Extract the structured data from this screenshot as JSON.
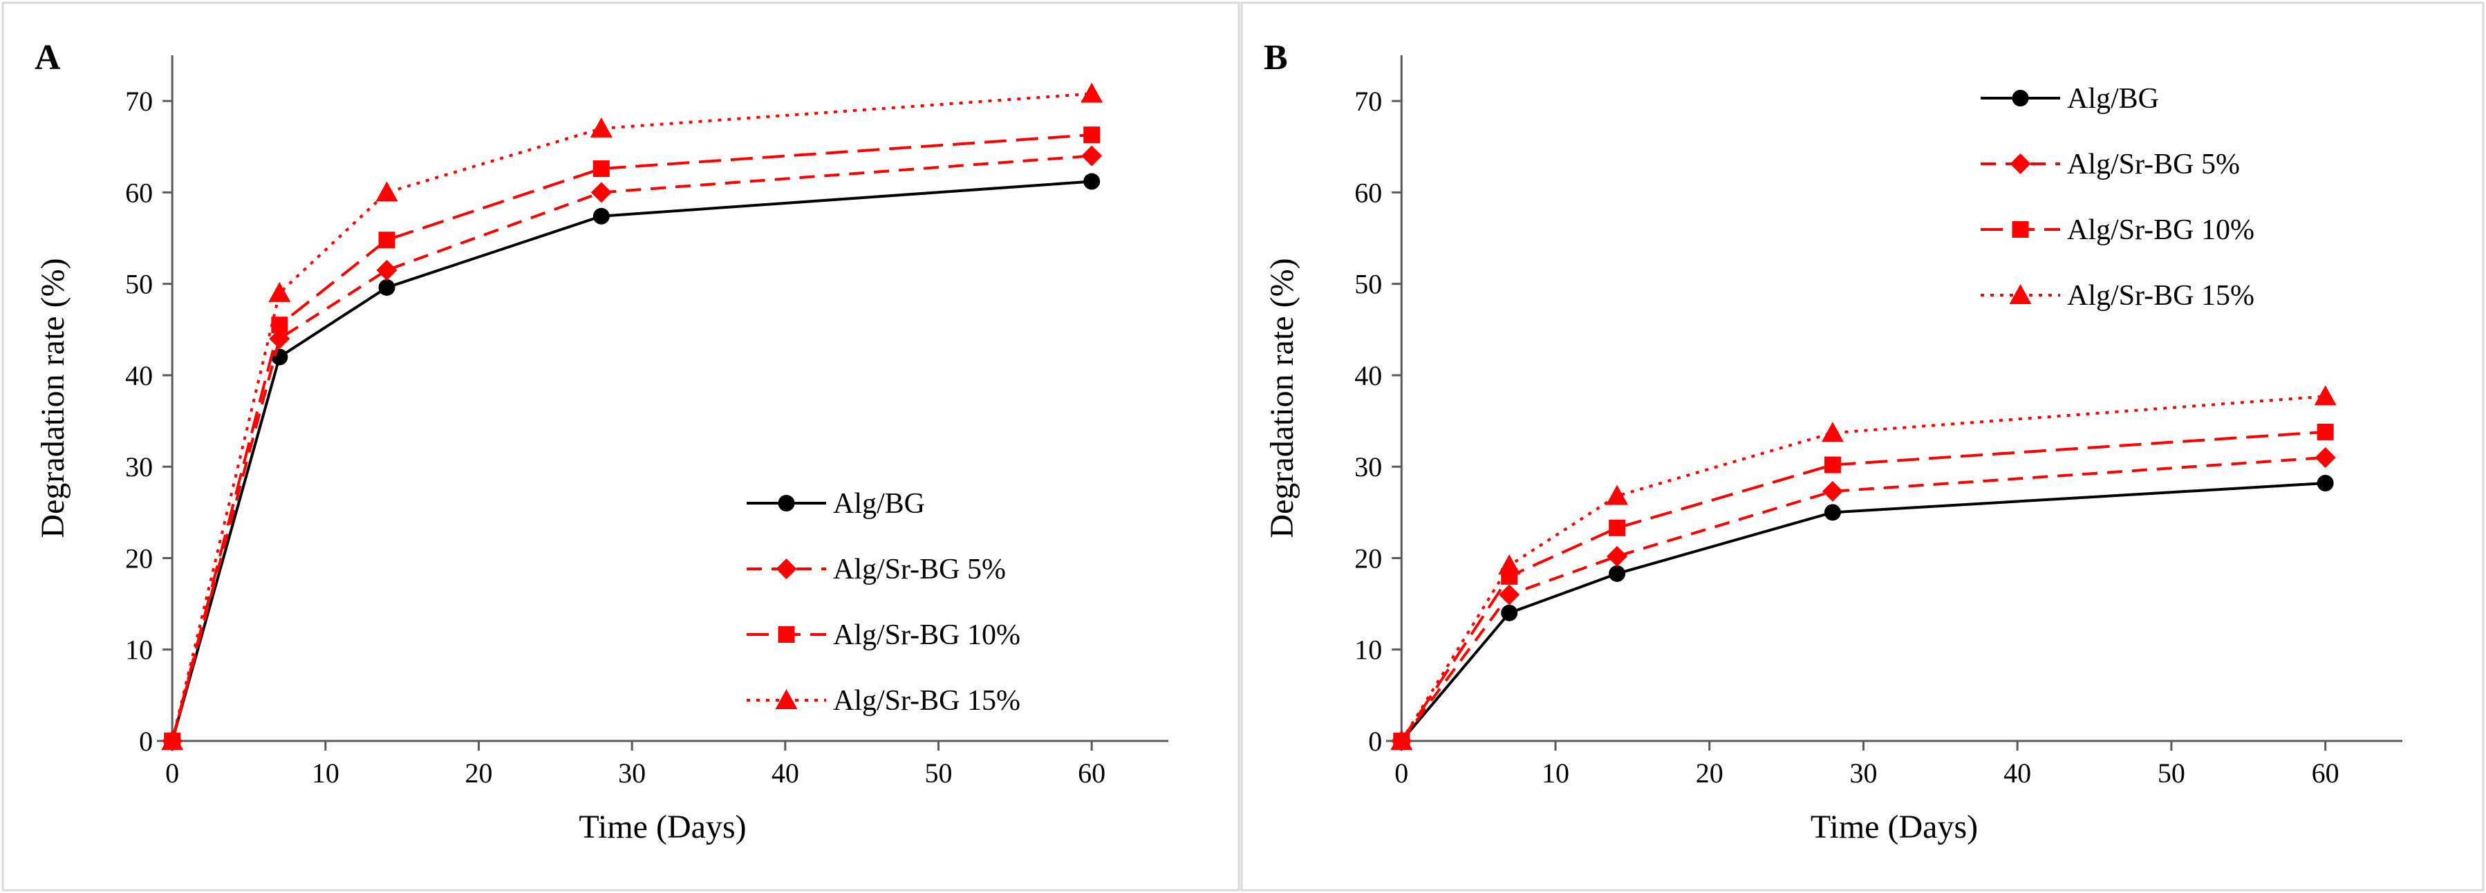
{
  "chart_data": [
    {
      "type": "line",
      "panel_label": "A",
      "xlabel": "Time  (Days)",
      "ylabel": "Degradation rate (%)",
      "xlim": [
        -1,
        65
      ],
      "ylim": [
        0,
        75
      ],
      "xticks": [
        0,
        10,
        20,
        30,
        40,
        50,
        60
      ],
      "yticks": [
        0,
        10,
        20,
        30,
        40,
        50,
        60,
        70
      ],
      "legend_position": "bottom-right",
      "x": [
        0,
        7,
        14,
        28,
        60
      ],
      "series": [
        {
          "name": "Alg/BG",
          "values": [
            0,
            42,
            49.6,
            57.4,
            61.2
          ],
          "color": "#000000",
          "marker": "circle",
          "dash": "solid"
        },
        {
          "name": "Alg/Sr-BG 5%",
          "values": [
            0,
            44,
            51.5,
            60,
            64
          ],
          "color": "#ff0000",
          "marker": "diamond",
          "dash": "dashed"
        },
        {
          "name": "Alg/Sr-BG 10%",
          "values": [
            0,
            45.5,
            54.8,
            62.6,
            66.3
          ],
          "color": "#ff0000",
          "marker": "square",
          "dash": "long-dash"
        },
        {
          "name": "Alg/Sr-BG 15%",
          "values": [
            0,
            49,
            60,
            67,
            70.8
          ],
          "color": "#ff0000",
          "marker": "triangle",
          "dash": "dotted"
        }
      ]
    },
    {
      "type": "line",
      "panel_label": "B",
      "xlabel": "Time  (Days)",
      "ylabel": "Degradation rate (%)",
      "xlim": [
        -1,
        65
      ],
      "ylim": [
        0,
        75
      ],
      "xticks": [
        0,
        10,
        20,
        30,
        40,
        50,
        60
      ],
      "yticks": [
        0,
        10,
        20,
        30,
        40,
        50,
        60,
        70
      ],
      "legend_position": "top-right",
      "x": [
        0,
        7,
        14,
        28,
        60
      ],
      "series": [
        {
          "name": "Alg/BG",
          "values": [
            0,
            14,
            18.3,
            25,
            28.2
          ],
          "color": "#000000",
          "marker": "circle",
          "dash": "solid"
        },
        {
          "name": "Alg/Sr-BG 5%",
          "values": [
            0,
            16,
            20.2,
            27.3,
            31
          ],
          "color": "#ff0000",
          "marker": "diamond",
          "dash": "dashed"
        },
        {
          "name": "Alg/Sr-BG 10%",
          "values": [
            0,
            18,
            23.3,
            30.2,
            33.8
          ],
          "color": "#ff0000",
          "marker": "square",
          "dash": "long-dash"
        },
        {
          "name": "Alg/Sr-BG 15%",
          "values": [
            0,
            19.2,
            26.8,
            33.7,
            37.7
          ],
          "color": "#ff0000",
          "marker": "triangle",
          "dash": "dotted"
        }
      ]
    }
  ]
}
